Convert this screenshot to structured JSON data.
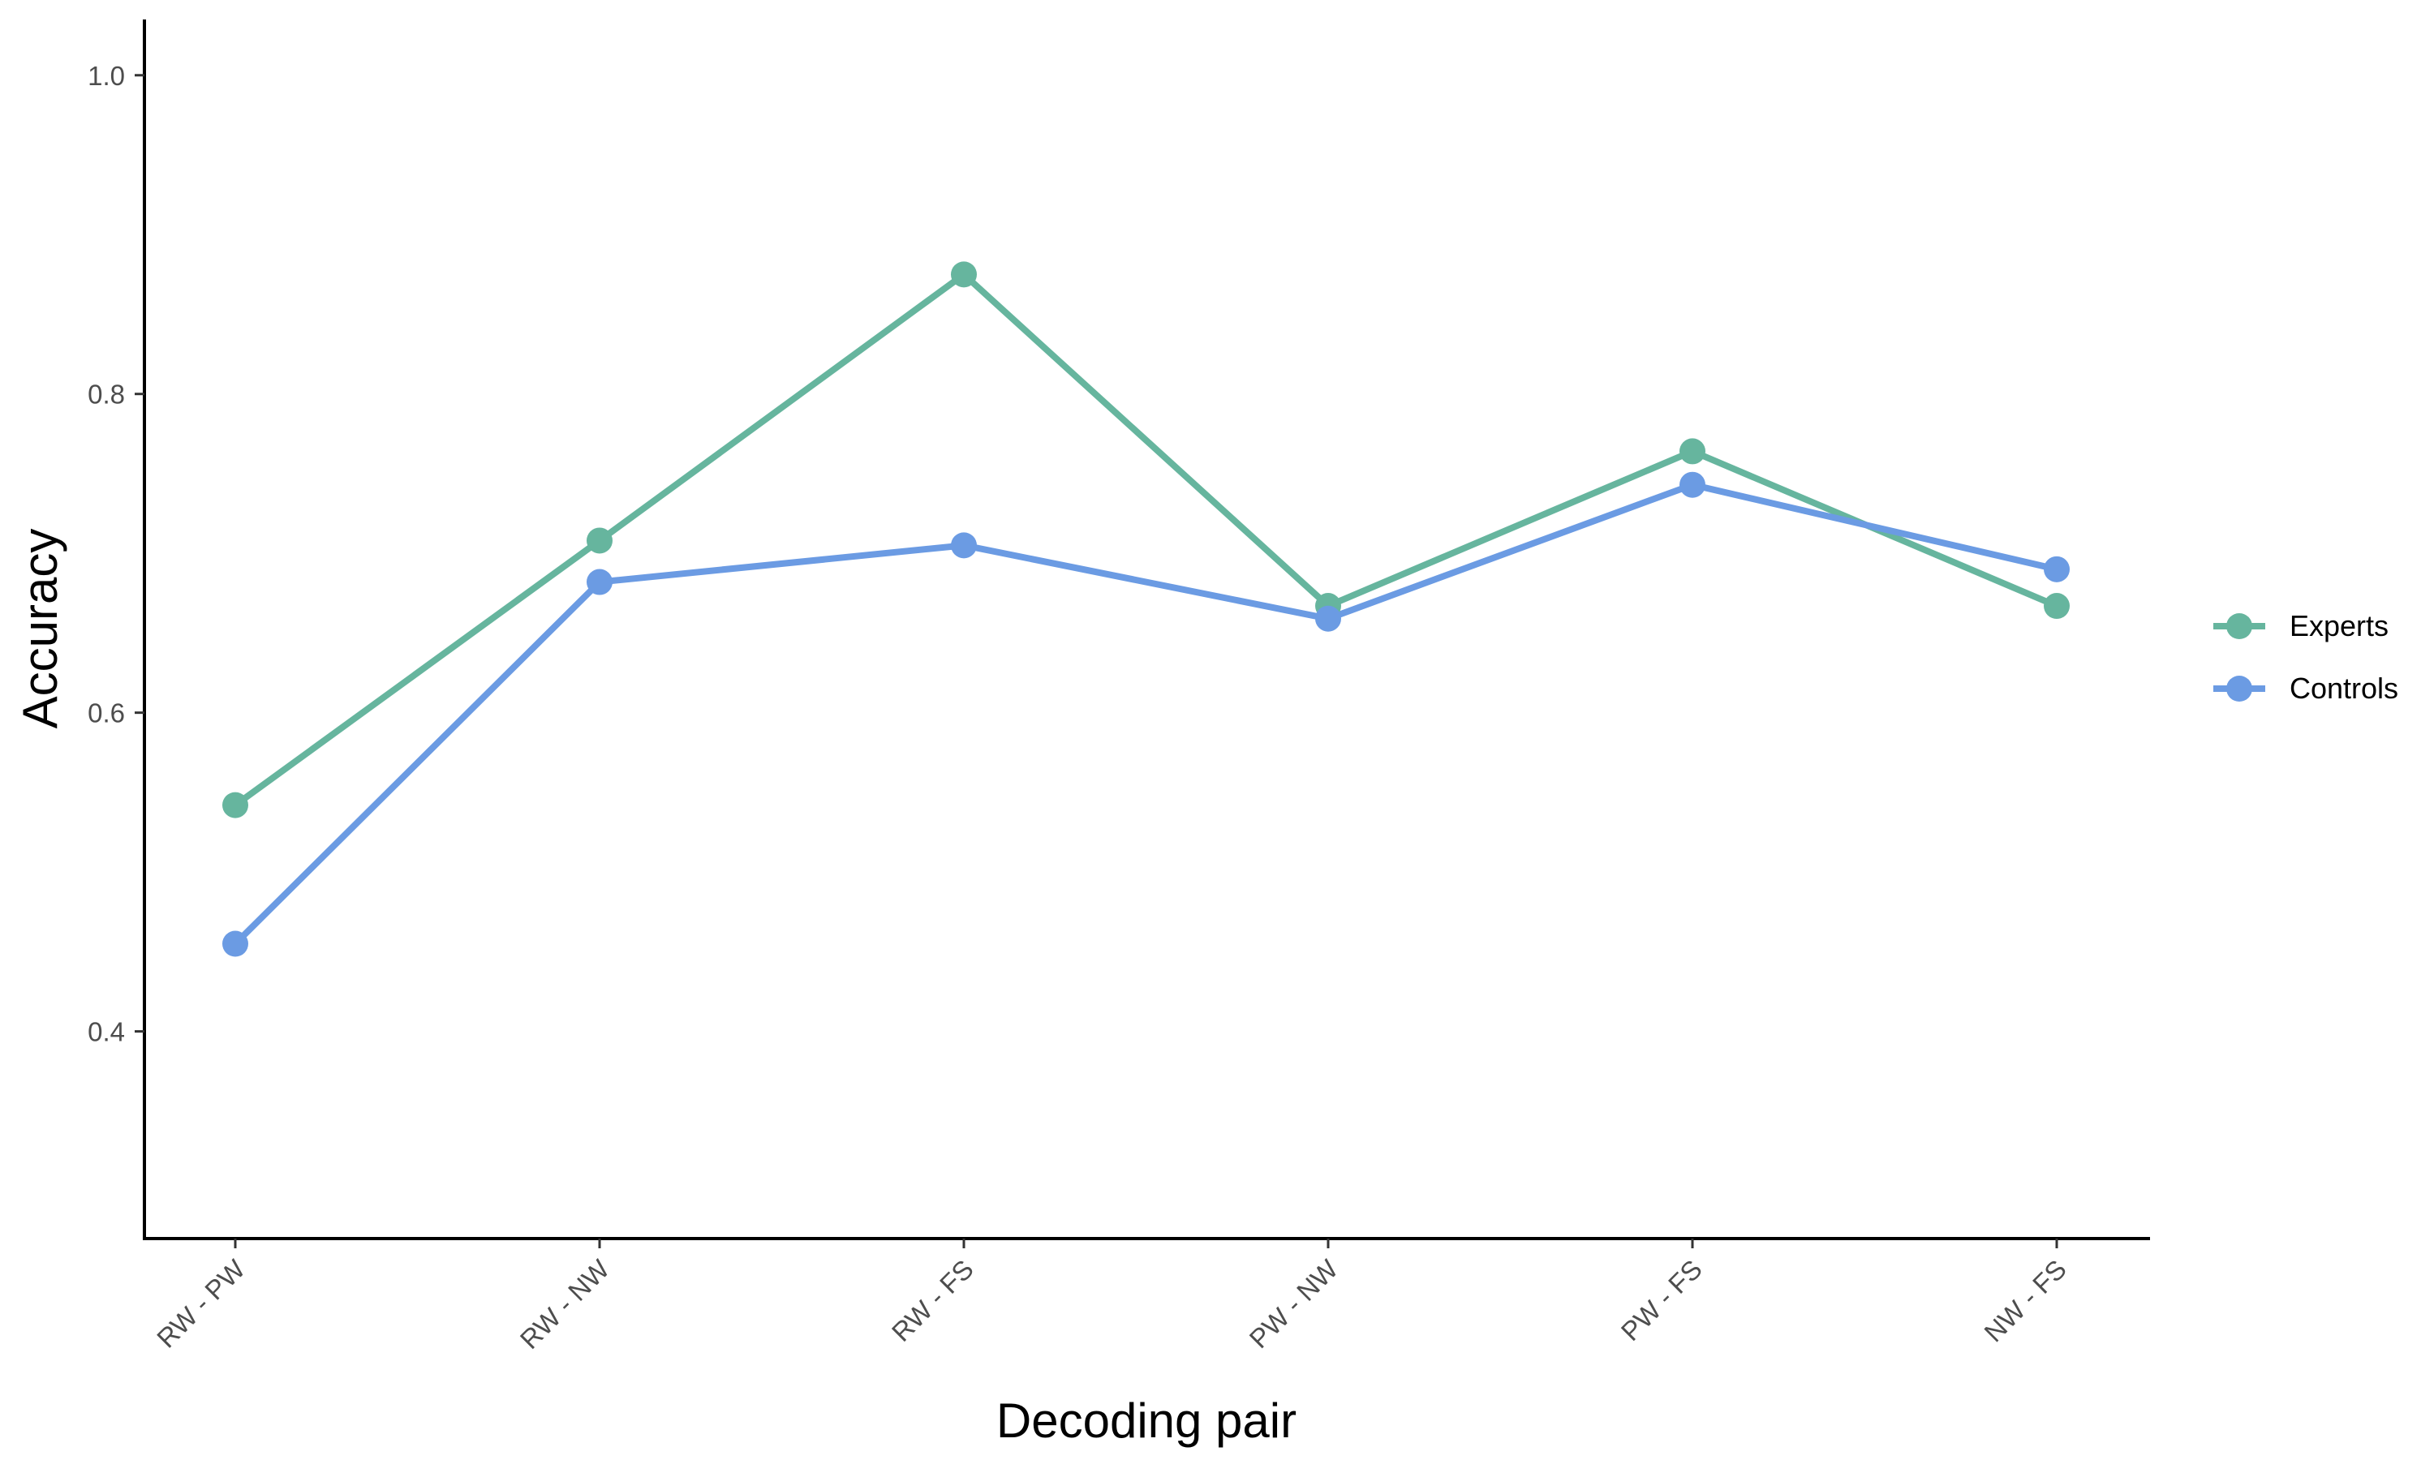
{
  "chart_data": {
    "type": "line",
    "title": "",
    "xlabel": "Decoding pair",
    "ylabel": "Accuracy",
    "categories": [
      "RW - PW",
      "RW - NW",
      "RW - FS",
      "PW - NW",
      "PW - FS",
      "NW - FS"
    ],
    "ylim": [
      0.27,
      1.035
    ],
    "yticks": [
      0.4,
      0.6,
      0.8,
      1.0
    ],
    "ytick_labels": [
      "0.4",
      "0.6",
      "0.8",
      "1.0"
    ],
    "grid": false,
    "legend_position": "right",
    "series": [
      {
        "name": "Experts",
        "color": "#66b59e",
        "values": [
          0.542,
          0.708,
          0.875,
          0.667,
          0.764,
          0.667
        ]
      },
      {
        "name": "Controls",
        "color": "#6b9be3",
        "values": [
          0.455,
          0.682,
          0.705,
          0.659,
          0.743,
          0.69
        ]
      }
    ]
  }
}
